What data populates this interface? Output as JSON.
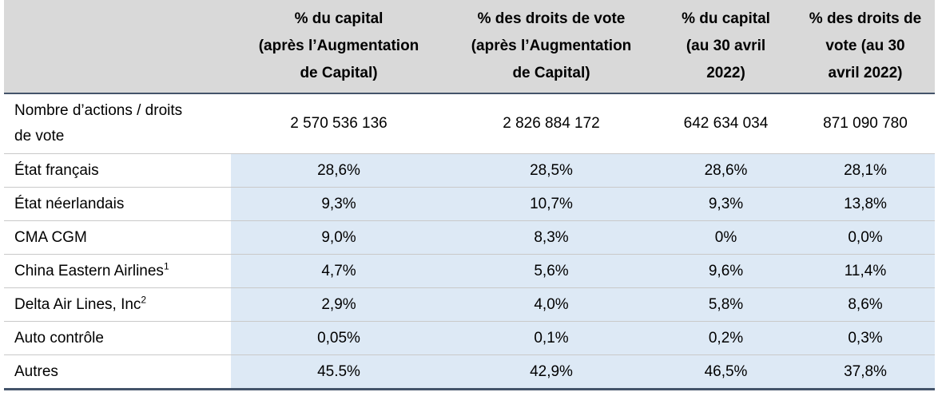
{
  "columns": [
    "% du capital (après l’Augmentation de Capital)",
    "% des droits de vote (après l’Augmentation de Capital)",
    "% du capital (au 30 avril 2022)",
    "% des droits de vote (au 30 avril 2022)"
  ],
  "header_lines": [
    [
      "% du capital",
      "(après l’Augmentation",
      "de Capital)"
    ],
    [
      "% des droits de vote",
      "(après l’Augmentation",
      "de Capital)"
    ],
    [
      "% du capital",
      "(au 30 avril",
      "2022)"
    ],
    [
      "% des droits de",
      "vote (au 30",
      "avril 2022)"
    ]
  ],
  "rows": [
    {
      "label": "Nombre d’actions / droits de vote",
      "label_lines": [
        "Nombre d’actions / droits",
        "de vote"
      ],
      "note": "",
      "values": [
        "2 570 536 136",
        "2 826 884 172",
        "642 634 034",
        "871 090 780"
      ]
    },
    {
      "label": "État français",
      "note": "",
      "values": [
        "28,6%",
        "28,5%",
        "28,6%",
        "28,1%"
      ]
    },
    {
      "label": "État néerlandais",
      "note": "",
      "values": [
        "9,3%",
        "10,7%",
        "9,3%",
        "13,8%"
      ]
    },
    {
      "label": "CMA CGM",
      "note": "",
      "values": [
        "9,0%",
        "8,3%",
        "0%",
        "0,0%"
      ]
    },
    {
      "label": "China Eastern Airlines",
      "note": "1",
      "values": [
        "4,7%",
        "5,6%",
        "9,6%",
        "11,4%"
      ]
    },
    {
      "label": "Delta Air Lines, Inc",
      "note": "2",
      "values": [
        "2,9%",
        "4,0%",
        "5,8%",
        "8,6%"
      ]
    },
    {
      "label": "Auto contrôle",
      "note": "",
      "values": [
        "0,05%",
        "0,1%",
        "0,2%",
        "0,3%"
      ]
    },
    {
      "label": "Autres",
      "note": "",
      "values": [
        "45.5%",
        "42,9%",
        "46,5%",
        "37,8%"
      ]
    }
  ],
  "colors": {
    "header_bg": "#d9d9d9",
    "cell_bg": "#dde9f5",
    "rule": "#44546a",
    "row_border": "#c9c9c9"
  }
}
